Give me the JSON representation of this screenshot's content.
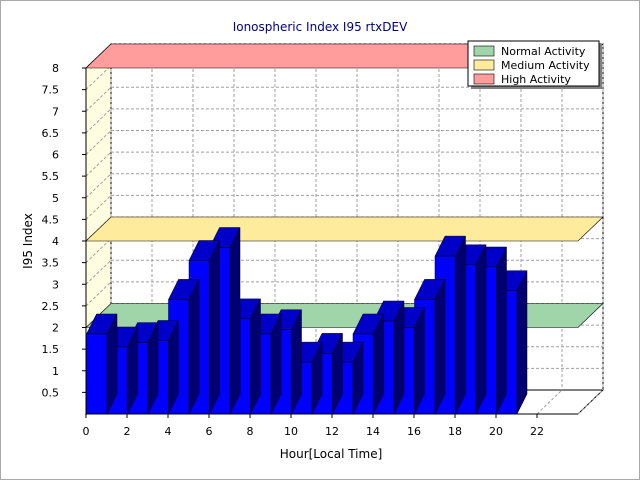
{
  "chart_data": {
    "type": "bar",
    "title": "Ionospheric Index I95 rtxDEV",
    "xlabel": "Hour[Local Time]",
    "ylabel": "I95 Index",
    "x": [
      0,
      1,
      2,
      3,
      4,
      5,
      6,
      7,
      8,
      9,
      10,
      11,
      12,
      13,
      14,
      15,
      16,
      17,
      18,
      19,
      20
    ],
    "values": [
      1.85,
      1.55,
      1.65,
      1.7,
      2.65,
      3.55,
      3.85,
      2.2,
      1.85,
      1.95,
      1.2,
      1.4,
      1.2,
      1.85,
      2.15,
      2.0,
      2.65,
      3.65,
      3.45,
      3.4,
      2.85
    ],
    "x_ticks": [
      "0",
      "2",
      "4",
      "6",
      "8",
      "10",
      "12",
      "14",
      "16",
      "18",
      "20",
      "22"
    ],
    "y_ticks": [
      "0.5",
      "1",
      "1.5",
      "2",
      "2.5",
      "3",
      "3.5",
      "4",
      "4.5",
      "5",
      "5.5",
      "6",
      "6.5",
      "7",
      "7.5",
      "8"
    ],
    "ylim": [
      0,
      8
    ],
    "xlim": [
      0,
      24
    ],
    "grid": true,
    "legend_position": "top-right",
    "bar_color": "#0000ff",
    "activity_bands": [
      {
        "name": "Normal Activity",
        "level": 2,
        "color": "#9fd5a9"
      },
      {
        "name": "Medium Activity",
        "level": 4,
        "color": "#ffeb9c"
      },
      {
        "name": "High Activity",
        "level": 8,
        "color": "#ff9c9c"
      }
    ]
  }
}
